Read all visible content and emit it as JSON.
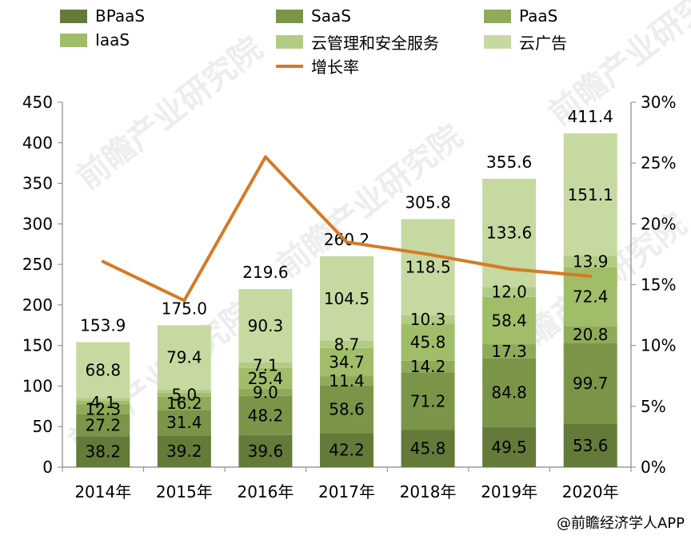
{
  "chart_data": {
    "type": "bar",
    "stacked": true,
    "title": "",
    "xlabel": "",
    "ylabel": "",
    "categories": [
      "2014年",
      "2015年",
      "2016年",
      "2017年",
      "2018年",
      "2019年",
      "2020年"
    ],
    "ylim": [
      0,
      450
    ],
    "yticks": [
      "0",
      "50",
      "100",
      "150",
      "200",
      "250",
      "300",
      "350",
      "400",
      "450"
    ],
    "y2lim": [
      0,
      30
    ],
    "y2ticks": [
      "0%",
      "5%",
      "10%",
      "15%",
      "20%",
      "25%",
      "30%"
    ],
    "series": [
      {
        "name": "BPaaS",
        "color": "#637a39",
        "values": [
          38.2,
          39.2,
          39.6,
          42.2,
          45.8,
          49.5,
          53.6
        ],
        "labels": [
          "38.2",
          "39.2",
          "39.6",
          "42.2",
          "45.8",
          "49.5",
          "53.6"
        ]
      },
      {
        "name": "SaaS",
        "color": "#7a9548",
        "values": [
          27.2,
          31.4,
          48.2,
          58.6,
          71.2,
          84.8,
          99.7
        ],
        "labels": [
          "27.2",
          "31.4",
          "48.2",
          "58.6",
          "71.2",
          "84.8",
          "99.7"
        ]
      },
      {
        "name": "PaaS",
        "color": "#8fab5a",
        "values": [
          12.3,
          16.2,
          9.0,
          11.4,
          14.2,
          17.3,
          20.8
        ],
        "labels": [
          "12.3",
          "16.2",
          "9.0",
          "11.4",
          "14.2",
          "17.3",
          "20.8"
        ]
      },
      {
        "name": "IaaS",
        "color": "#a0bd68",
        "values": [
          4.1,
          5.0,
          25.4,
          34.7,
          45.8,
          58.4,
          72.4
        ],
        "labels": [
          "4.1",
          "5.0",
          "25.4",
          "34.7",
          "45.8",
          "58.4",
          "72.4"
        ]
      },
      {
        "name": "云管理和安全服务",
        "color": "#b3cc85",
        "values": [
          3.5,
          3.8,
          7.1,
          8.7,
          10.3,
          12.0,
          13.9
        ],
        "labels": [
          "",
          "",
          "7.1",
          "8.7",
          "10.3",
          "12.0",
          "13.9"
        ]
      },
      {
        "name": "云广告",
        "color": "#c6d9a1",
        "values": [
          68.8,
          79.4,
          90.3,
          104.5,
          118.5,
          133.6,
          151.1
        ],
        "labels": [
          "68.8",
          "79.4",
          "90.3",
          "104.5",
          "118.5",
          "133.6",
          "151.1"
        ]
      }
    ],
    "totals": [
      "153.9",
      "175.0",
      "219.6",
      "260.2",
      "305.8",
      "355.6",
      "411.4"
    ],
    "line": {
      "name": "增长率",
      "color": "#d57a25",
      "axis": "right",
      "values": [
        16.9,
        13.7,
        25.5,
        18.5,
        17.5,
        16.3,
        15.7
      ]
    },
    "legend_position": "top"
  },
  "legend": [
    {
      "label": "BPaaS",
      "color": "#637a39",
      "kind": "swatch"
    },
    {
      "label": "SaaS",
      "color": "#7a9548",
      "kind": "swatch"
    },
    {
      "label": "PaaS",
      "color": "#8fab5a",
      "kind": "swatch"
    },
    {
      "label": "IaaS",
      "color": "#a0bd68",
      "kind": "swatch"
    },
    {
      "label": "云管理和安全服务",
      "color": "#b3cc85",
      "kind": "swatch"
    },
    {
      "label": "云广告",
      "color": "#c6d9a1",
      "kind": "swatch"
    },
    {
      "label": "增长率",
      "color": "#d57a25",
      "kind": "line"
    }
  ],
  "source": "@前瞻经济学人APP",
  "watermark": "前瞻产业研究院"
}
